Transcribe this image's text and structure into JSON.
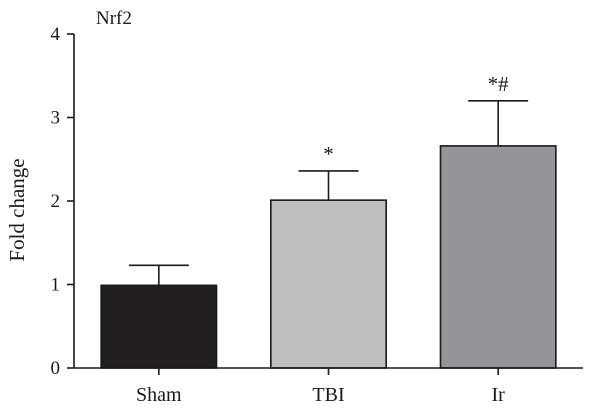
{
  "chart_data": {
    "type": "bar",
    "title": "Nrf2",
    "xlabel": "",
    "ylabel": "Fold change",
    "ylim": [
      0,
      4
    ],
    "yticks": [
      "0",
      "1",
      "2",
      "3",
      "4"
    ],
    "categories": [
      "Sham",
      "TBI",
      "Ir"
    ],
    "values": [
      0.99,
      2.01,
      2.66
    ],
    "errors": [
      0.24,
      0.35,
      0.54
    ],
    "annotations": [
      "",
      "*",
      "*#"
    ],
    "colors": [
      "#231f20",
      "#bdbfc1",
      "#939598"
    ],
    "grid": false
  }
}
